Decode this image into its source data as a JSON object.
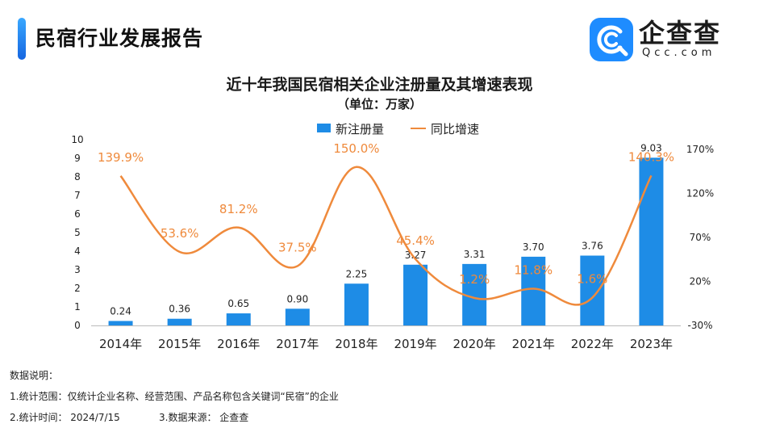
{
  "page": {
    "title": "民宿行业发展报告",
    "logo_text": "企查查",
    "logo_sub": "Qcc.com"
  },
  "chart_data": {
    "type": "bar",
    "title": "近十年我国民宿相关企业注册量及其增速表现",
    "subtitle": "（单位：万家）",
    "categories": [
      "2014年",
      "2015年",
      "2016年",
      "2017年",
      "2018年",
      "2019年",
      "2020年",
      "2021年",
      "2022年",
      "2023年"
    ],
    "series": [
      {
        "name": "新注册量",
        "type": "bar",
        "axis": "left",
        "values": [
          0.24,
          0.36,
          0.65,
          0.9,
          2.25,
          3.27,
          3.31,
          3.7,
          3.76,
          9.03
        ],
        "labels": [
          "0.24",
          "0.36",
          "0.65",
          "0.90",
          "2.25",
          "3.27",
          "3.31",
          "3.70",
          "3.76",
          "9.03"
        ],
        "color": "#1e8ce6"
      },
      {
        "name": "同比增速",
        "type": "line",
        "axis": "right",
        "values": [
          139.9,
          53.6,
          81.2,
          37.5,
          150.0,
          45.4,
          1.2,
          11.8,
          1.6,
          140.3
        ],
        "labels": [
          "139.9%",
          "53.6%",
          "81.2%",
          "37.5%",
          "150.0%",
          "45.4%",
          "1.2%",
          "11.8%",
          "1.6%",
          "140.3%"
        ],
        "color": "#ef8a3c"
      }
    ],
    "left_axis": {
      "min": 0,
      "max": 10,
      "ticks": [
        "0",
        "1",
        "2",
        "3",
        "4",
        "5",
        "6",
        "7",
        "8",
        "9",
        "10"
      ]
    },
    "right_axis": {
      "min": -30,
      "max": 170,
      "ticks": [
        "-30%",
        "20%",
        "70%",
        "120%",
        "170%"
      ],
      "values": [
        -30,
        20,
        70,
        120,
        170
      ]
    },
    "legend_position": "top-center",
    "grid": false
  },
  "notes": {
    "heading": "数据说明：",
    "line1": "1.统计范围：仅统计企业名称、经营范围、产品名称包含关键词“民宿”的企业",
    "line2": "2.统计时间：  2024/7/15",
    "line3": "3.数据来源：  企查查"
  }
}
